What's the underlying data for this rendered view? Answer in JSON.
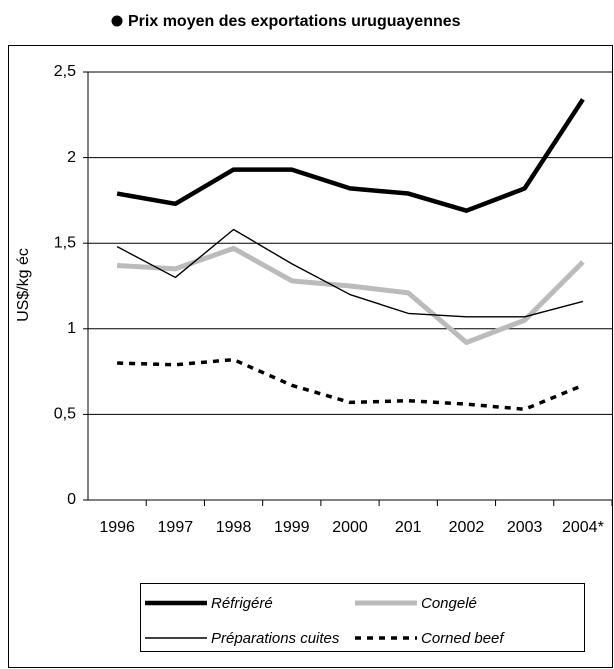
{
  "chart_data": {
    "type": "line",
    "title": "Prix moyen des exportations uruguayennes",
    "y_label": "US$/kg éc",
    "categories": [
      "1996",
      "1997",
      "1998",
      "1999",
      "2000",
      "201",
      "2002",
      "2003",
      "2004*"
    ],
    "series": [
      {
        "name": "Réfrigéré",
        "color": "#000000",
        "values": [
          1.79,
          1.73,
          1.93,
          1.93,
          1.82,
          1.79,
          1.69,
          1.82,
          2.34
        ]
      },
      {
        "name": "Congelé",
        "color": "#bbbbbb",
        "values": [
          1.37,
          1.35,
          1.47,
          1.28,
          1.25,
          1.21,
          0.92,
          1.05,
          1.39
        ]
      },
      {
        "name": "Préparations cuites",
        "color": "#000000",
        "values": [
          1.48,
          1.3,
          1.58,
          1.38,
          1.2,
          1.09,
          1.07,
          1.07,
          1.16
        ]
      },
      {
        "name": "Corned beef",
        "color": "#000000",
        "values": [
          0.8,
          0.79,
          0.82,
          0.67,
          0.57,
          0.58,
          0.56,
          0.53,
          0.67
        ]
      }
    ],
    "ylim": [
      0,
      2.5
    ],
    "yticks": [
      0,
      {
        "value": 0.5,
        "label": "0,5"
      },
      1,
      {
        "value": 1.5,
        "label": "1,5"
      },
      2,
      {
        "value": 2.5,
        "label": "2,5"
      }
    ],
    "grid": true
  }
}
